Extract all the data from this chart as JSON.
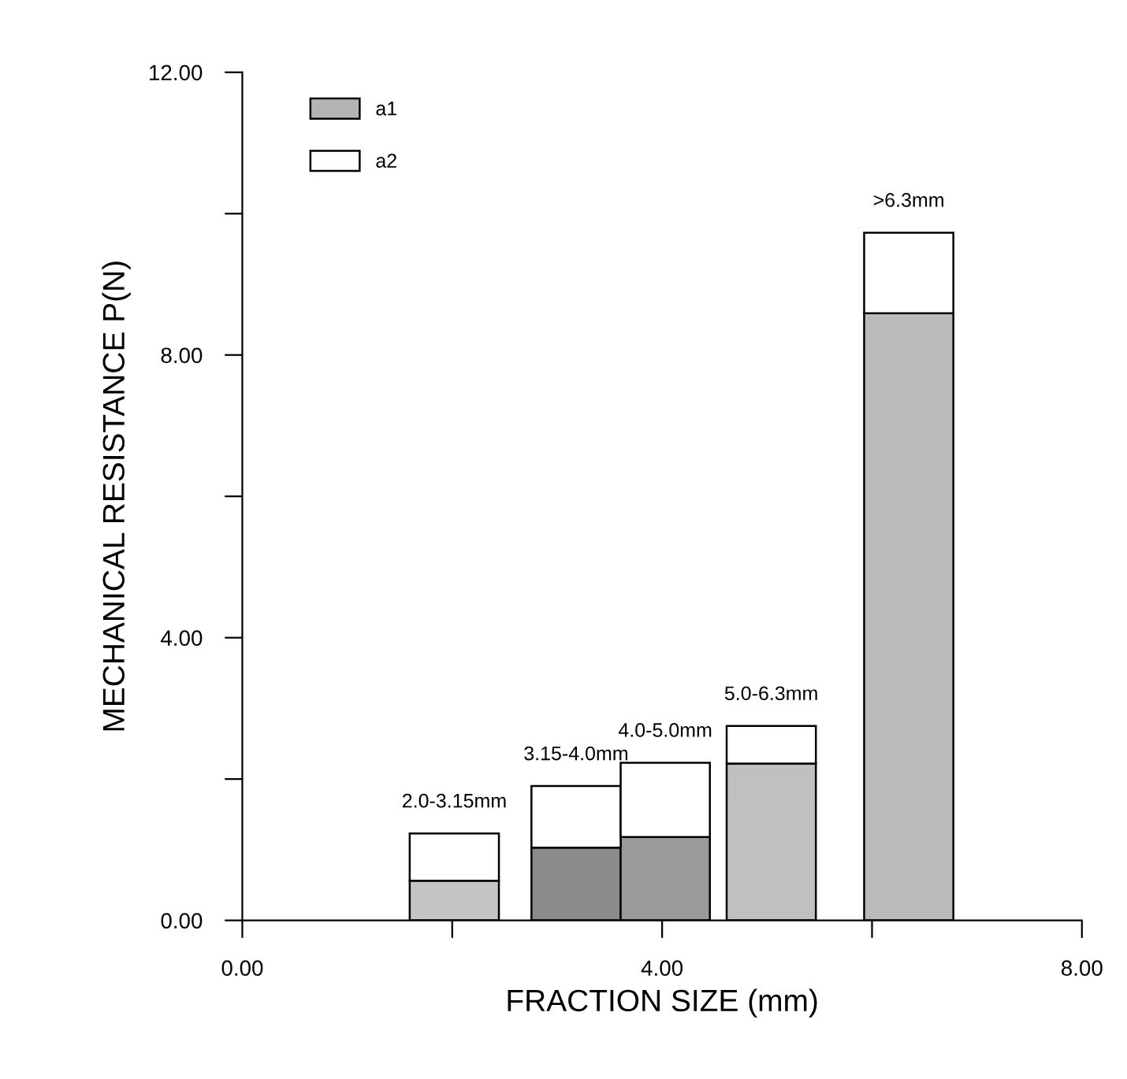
{
  "chart_data": {
    "type": "bar",
    "stacked": true,
    "xlabel": "FRACTION SIZE (mm)",
    "ylabel": "MECHANICAL RESISTANCE P(N)",
    "x": [
      2.02,
      3.18,
      4.03,
      5.04,
      6.35
    ],
    "series": [
      {
        "name": "a1",
        "color": "#b4b4b4",
        "colors": [
          "#c4c4c4",
          "#8c8c8c",
          "#9a9a9a",
          "#c0c0c0",
          "#bababa"
        ],
        "values": [
          0.56,
          1.03,
          1.18,
          2.22,
          8.59
        ]
      },
      {
        "name": "a2",
        "color": "#ffffff",
        "values": [
          0.67,
          0.87,
          1.05,
          0.53,
          1.14
        ]
      }
    ],
    "annotations": [
      {
        "text": "2.0-3.15mm",
        "x": 2.02,
        "y": 1.23
      },
      {
        "text": "3.15-4.0mm",
        "x": 3.18,
        "y": 1.9
      },
      {
        "text": "4.0-5.0mm",
        "x": 4.03,
        "y": 2.23
      },
      {
        "text": "5.0-6.3mm",
        "x": 5.04,
        "y": 2.75
      },
      {
        "text": ">6.3mm",
        "x": 6.35,
        "y": 9.73
      }
    ],
    "xlim": [
      0,
      8
    ],
    "ylim": [
      0,
      12
    ],
    "xticks": [
      {
        "value": 0,
        "label": "0.00"
      },
      {
        "value": 2,
        "label": null
      },
      {
        "value": 4,
        "label": "4.00"
      },
      {
        "value": 6,
        "label": null
      },
      {
        "value": 8,
        "label": "8.00"
      }
    ],
    "yticks": [
      {
        "value": 0,
        "label": "0.00"
      },
      {
        "value": 2,
        "label": null
      },
      {
        "value": 4,
        "label": "4.00"
      },
      {
        "value": 6,
        "label": null
      },
      {
        "value": 8,
        "label": "8.00"
      },
      {
        "value": 10,
        "label": null
      },
      {
        "value": 12,
        "label": "12.00"
      }
    ],
    "legend": "top left",
    "grid": false
  }
}
